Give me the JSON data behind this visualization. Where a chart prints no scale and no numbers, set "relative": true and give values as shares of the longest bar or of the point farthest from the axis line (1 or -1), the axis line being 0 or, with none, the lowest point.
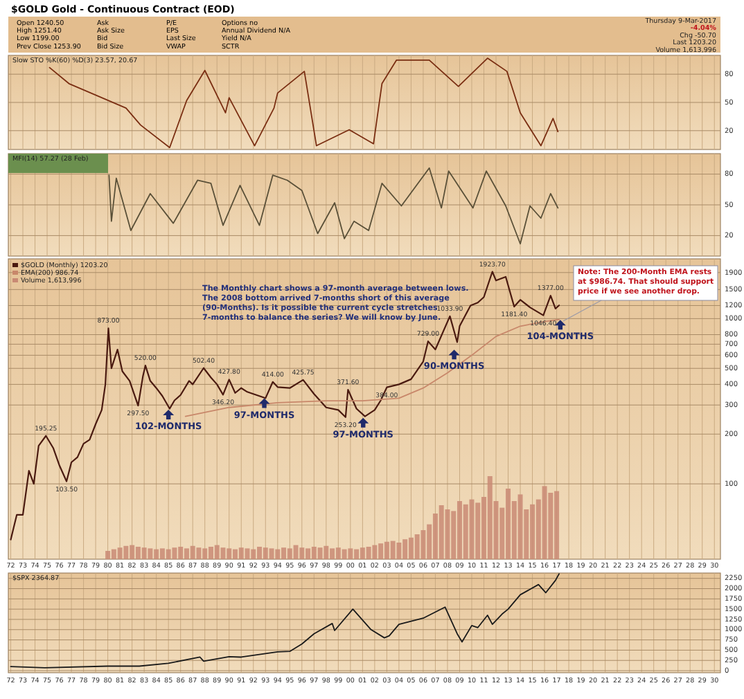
{
  "chart_data": [
    {
      "type": "other",
      "title": "$GOLD Gold - Continuous Contract (EOD)",
      "annotations": [
        "Open 1240.50",
        "High 1251.40",
        "Low 1199.00",
        "Prev Close 1253.90",
        "Ask",
        "Ask Size",
        "Bid",
        "Bid Size",
        "P/E",
        "EPS",
        "Last Size",
        "VWAP",
        "Options no",
        "Annual Dividend N/A",
        "Yield N/A",
        "SCTR",
        "Thursday 9-Mar-2017",
        "-4.04%",
        "Chg -50.70",
        "Last 1203.20",
        "Volume 1,613,996"
      ]
    },
    {
      "type": "line",
      "title": "Slow STO %K(60) %D(3) 23.57, 20.67",
      "xlim": [
        1971.8,
        2030.5
      ],
      "ylim": [
        0,
        100
      ],
      "yticks": [
        20,
        50,
        80
      ],
      "grid": true,
      "tick_labels": "y",
      "xticks": [
        1972,
        1973,
        1974,
        1975,
        1976,
        1977,
        1978,
        1979,
        1980,
        1981,
        1982,
        1983,
        1984,
        1985,
        1986,
        1987,
        1988,
        1989,
        1990,
        1991,
        1992,
        1993,
        1994,
        1995,
        1996,
        1997,
        1998,
        1999,
        2000,
        2001,
        2002,
        2003,
        2004,
        2005,
        2006,
        2007,
        2008,
        2009,
        2010,
        2011,
        2012,
        2013,
        2014,
        2015,
        2016,
        2017,
        2018,
        2019,
        2020,
        2021,
        2022,
        2023,
        2024,
        2025,
        2026,
        2027,
        2028,
        2029,
        2030
      ],
      "series": [
        {
          "color": "#7a2e12",
          "x": [
            1975.2,
            1976.8,
            1981.5,
            1982.7,
            1985.1,
            1986.5,
            1988.0,
            1989.7,
            1990.0,
            1992.1,
            1993.7,
            1994.0,
            1996.2,
            1997.2,
            1999.9,
            2001.9,
            2002.6,
            2003.8,
            2006.5,
            2008.9,
            2011.3,
            2012.9,
            2014.0,
            2015.7,
            2016.7,
            2017.1
          ],
          "values": [
            87,
            70,
            44,
            26,
            2,
            52,
            84,
            39,
            55,
            4,
            44,
            60,
            83,
            4,
            21,
            6,
            70,
            95,
            95,
            67,
            97,
            83,
            39,
            4,
            33,
            19
          ]
        }
      ]
    },
    {
      "type": "line",
      "title": "MFI(14) 57.27 (28 Feb)",
      "xlim": [
        1971.8,
        2030.5
      ],
      "ylim": [
        0,
        100
      ],
      "yticks": [
        20,
        50,
        80
      ],
      "grid": true,
      "tick_labels": "y",
      "xticks": [
        1972,
        1973,
        1974,
        1975,
        1976,
        1977,
        1978,
        1979,
        1980,
        1981,
        1982,
        1983,
        1984,
        1985,
        1986,
        1987,
        1988,
        1989,
        1990,
        1991,
        1992,
        1993,
        1994,
        1995,
        1996,
        1997,
        1998,
        1999,
        2000,
        2001,
        2002,
        2003,
        2004,
        2005,
        2006,
        2007,
        2008,
        2009,
        2010,
        2011,
        2012,
        2013,
        2014,
        2015,
        2016,
        2017,
        2018,
        2019,
        2020,
        2021,
        2022,
        2023,
        2024,
        2025,
        2026,
        2027,
        2028,
        2029,
        2030
      ],
      "series": [
        {
          "color": "#5a5038",
          "x": [
            1980.1,
            1980.3,
            1980.7,
            1981.9,
            1983.5,
            1985.4,
            1987.4,
            1988.5,
            1989.5,
            1990.9,
            1992.5,
            1993.6,
            1994.8,
            1996.0,
            1997.3,
            1998.7,
            1999.5,
            2000.3,
            2001.5,
            2002.6,
            2004.2,
            2006.5,
            2007.5,
            2008.1,
            2010.1,
            2011.2,
            2012.8,
            2014.0,
            2014.8,
            2015.7,
            2016.5,
            2017.1
          ],
          "values": [
            79,
            34,
            76,
            25,
            61,
            32,
            74,
            71,
            30,
            69,
            30,
            79,
            74,
            64,
            22,
            52,
            17,
            34,
            25,
            71,
            49,
            86,
            47,
            83,
            47,
            83,
            49,
            12,
            49,
            37,
            61,
            47
          ]
        }
      ]
    },
    {
      "type": "line",
      "log": "y",
      "xlim": [
        1971.8,
        2030.5
      ],
      "ylim": [
        35,
        2300
      ],
      "yticks": [
        100,
        200,
        300,
        400,
        500,
        600,
        700,
        800,
        1000,
        1200,
        1500,
        1900
      ],
      "grid": true,
      "tick_labels": "y",
      "legend": "top left",
      "xticks": [
        1972,
        1973,
        1974,
        1975,
        1976,
        1977,
        1978,
        1979,
        1980,
        1981,
        1982,
        1983,
        1984,
        1985,
        1986,
        1987,
        1988,
        1989,
        1990,
        1991,
        1992,
        1993,
        1994,
        1995,
        1996,
        1997,
        1998,
        1999,
        2000,
        2001,
        2002,
        2003,
        2004,
        2005,
        2006,
        2007,
        2008,
        2009,
        2010,
        2011,
        2012,
        2013,
        2014,
        2015,
        2016,
        2017,
        2018,
        2019,
        2020,
        2021,
        2022,
        2023,
        2024,
        2025,
        2026,
        2027,
        2028,
        2029,
        2030
      ],
      "series": [
        {
          "name": "$GOLD (Monthly) 1203.20",
          "color": "#4a1a10",
          "x": [
            1972.0,
            1972.5,
            1973.0,
            1973.5,
            1973.9,
            1974.3,
            1974.9,
            1975.5,
            1976.0,
            1976.6,
            1977.0,
            1977.5,
            1978.0,
            1978.5,
            1979.0,
            1979.5,
            1979.8,
            1980.05,
            1980.3,
            1980.8,
            1981.2,
            1981.8,
            1982.5,
            1982.9,
            1983.1,
            1983.5,
            1984.0,
            1984.5,
            1985.1,
            1985.5,
            1986.0,
            1986.7,
            1987.0,
            1987.9,
            1988.5,
            1989.0,
            1989.5,
            1990.0,
            1990.5,
            1991.0,
            1991.5,
            1992.0,
            1993.0,
            1993.6,
            1994.0,
            1995.0,
            1996.1,
            1997.0,
            1998.0,
            1999.0,
            1999.6,
            1999.8,
            2000.5,
            2001.2,
            2002.0,
            2002.5,
            2003.0,
            2004.0,
            2005.0,
            2006.0,
            2006.4,
            2007.0,
            2008.2,
            2008.8,
            2009.0,
            2009.9,
            2010.5,
            2011.0,
            2011.7,
            2012.0,
            2012.8,
            2013.5,
            2014.0,
            2014.8,
            2015.9,
            2016.5,
            2016.9,
            2017.2
          ],
          "values": [
            46,
            65,
            65,
            120,
            100,
            170,
            195.25,
            165,
            130,
            103.5,
            135,
            145,
            175,
            185,
            230,
            280,
            400,
            873,
            500,
            650,
            480,
            420,
            297.5,
            450,
            520,
            420,
            380,
            340,
            285,
            320,
            345,
            420,
            400,
            502.4,
            440,
            400,
            346.2,
            427.8,
            355,
            380,
            360,
            350,
            330,
            414,
            385,
            380,
            425.75,
            350,
            290,
            280,
            253.2,
            371.6,
            285,
            256,
            280,
            320,
            384,
            400,
            430,
            550,
            729,
            650,
            1033.9,
            720,
            900,
            1200,
            1250,
            1350,
            1923.7,
            1700,
            1790,
            1181.4,
            1300,
            1170,
            1046.4,
            1377,
            1150,
            1203
          ]
        },
        {
          "name": "EMA(200) 986.74",
          "color": "#c8876a",
          "x": [
            1986.4,
            1990,
            1994,
            1998,
            2001,
            2004,
            2006,
            2008,
            2010,
            2012,
            2014,
            2016,
            2017.2
          ],
          "values": [
            256,
            290,
            310,
            318,
            318,
            330,
            380,
            470,
            600,
            780,
            900,
            960,
            987
          ]
        },
        {
          "type": "scatter",
          "marker": "triangle",
          "color": "#1f2a6b",
          "x": [
            1985.0,
            1992.9,
            2001.05,
            2008.55,
            2017.3
          ],
          "values": [
            260,
            305,
            232,
            600,
            910
          ]
        }
      ],
      "annotations": [
        "The Monthly chart shows a 97-month average between lows. The 2008 bottom arrived 7-months short of this average (90-Months). Is it possible the current cycle stretches 7-months to balance the series? We will know by June.",
        "Note: The 200-Month EMA rests at $986.74. That should support price if we see another drop.",
        {
          "text": "195.25",
          "x": 1974.9,
          "y": 195.25
        },
        {
          "text": "103.50",
          "x": 1976.6,
          "y": 103.5
        },
        {
          "text": "873.00",
          "x": 1980.05,
          "y": 873
        },
        {
          "text": "297.50",
          "x": 1982.5,
          "y": 297.5
        },
        {
          "text": "520.00",
          "x": 1983.1,
          "y": 520
        },
        {
          "text": "502.40",
          "x": 1987.9,
          "y": 502.4
        },
        {
          "text": "346.20",
          "x": 1989.5,
          "y": 346.2
        },
        {
          "text": "427.80",
          "x": 1990.0,
          "y": 427.8
        },
        {
          "text": "414.00",
          "x": 1993.6,
          "y": 414
        },
        {
          "text": "425.75",
          "x": 1996.1,
          "y": 425.75
        },
        {
          "text": "371.60",
          "x": 1999.8,
          "y": 371.6
        },
        {
          "text": "253.20",
          "x": 1999.6,
          "y": 253.2
        },
        {
          "text": "384.00",
          "x": 2003.0,
          "y": 384
        },
        {
          "text": "729.00",
          "x": 2006.4,
          "y": 729
        },
        {
          "text": "1033.90",
          "x": 2008.2,
          "y": 1033.9
        },
        {
          "text": "1923.70",
          "x": 2011.7,
          "y": 1923.7
        },
        {
          "text": "1181.40",
          "x": 2013.5,
          "y": 1181.4
        },
        {
          "text": "1046.40",
          "x": 2015.9,
          "y": 1046.4
        },
        {
          "text": "1377.00",
          "x": 2016.5,
          "y": 1377
        },
        {
          "text": "102-MONTHS",
          "x": 1985.0,
          "y": 260
        },
        {
          "text": "97-MONTHS",
          "x": 1992.9,
          "y": 305
        },
        {
          "text": "97-MONTHS",
          "x": 2001.05,
          "y": 232
        },
        {
          "text": "90-MONTHS",
          "x": 2008.55,
          "y": 600
        },
        {
          "text": "104-MONTHS",
          "x": 2017.3,
          "y": 910
        }
      ]
    },
    {
      "type": "bar",
      "relative": true,
      "xlim": [
        1971.8,
        2030.5
      ],
      "tick_labels": "x",
      "xticks": [
        {
          "value": 1972,
          "label": "72"
        },
        {
          "value": 1973,
          "label": "73"
        },
        {
          "value": 1974,
          "label": "74"
        },
        {
          "value": 1975,
          "label": "75"
        },
        {
          "value": 1976,
          "label": "76"
        },
        {
          "value": 1977,
          "label": "77"
        },
        {
          "value": 1978,
          "label": "78"
        },
        {
          "value": 1979,
          "label": "79"
        },
        {
          "value": 1980,
          "label": "80"
        },
        {
          "value": 1981,
          "label": "81"
        },
        {
          "value": 1982,
          "label": "82"
        },
        {
          "value": 1983,
          "label": "83"
        },
        {
          "value": 1984,
          "label": "84"
        },
        {
          "value": 1985,
          "label": "85"
        },
        {
          "value": 1986,
          "label": "86"
        },
        {
          "value": 1987,
          "label": "87"
        },
        {
          "value": 1988,
          "label": "88"
        },
        {
          "value": 1989,
          "label": "89"
        },
        {
          "value": 1990,
          "label": "90"
        },
        {
          "value": 1991,
          "label": "91"
        },
        {
          "value": 1992,
          "label": "92"
        },
        {
          "value": 1993,
          "label": "93"
        },
        {
          "value": 1994,
          "label": "94"
        },
        {
          "value": 1995,
          "label": "95"
        },
        {
          "value": 1996,
          "label": "96"
        },
        {
          "value": 1997,
          "label": "97"
        },
        {
          "value": 1998,
          "label": "98"
        },
        {
          "value": 1999,
          "label": "99"
        },
        {
          "value": 2000,
          "label": "00"
        },
        {
          "value": 2001,
          "label": "01"
        },
        {
          "value": 2002,
          "label": "02"
        },
        {
          "value": 2003,
          "label": "03"
        },
        {
          "value": 2004,
          "label": "04"
        },
        {
          "value": 2005,
          "label": "05"
        },
        {
          "value": 2006,
          "label": "06"
        },
        {
          "value": 2007,
          "label": "07"
        },
        {
          "value": 2008,
          "label": "08"
        },
        {
          "value": 2009,
          "label": "09"
        },
        {
          "value": 2010,
          "label": "10"
        },
        {
          "value": 2011,
          "label": "11"
        },
        {
          "value": 2012,
          "label": "12"
        },
        {
          "value": 2013,
          "label": "13"
        },
        {
          "value": 2014,
          "label": "14"
        },
        {
          "value": 2015,
          "label": "15"
        },
        {
          "value": 2016,
          "label": "16"
        },
        {
          "value": 2017,
          "label": "17"
        },
        {
          "value": 2018,
          "label": "18"
        },
        {
          "value": 2019,
          "label": "19"
        },
        {
          "value": 2020,
          "label": "20"
        },
        {
          "value": 2021,
          "label": "21"
        },
        {
          "value": 2022,
          "label": "22"
        },
        {
          "value": 2023,
          "label": "23"
        },
        {
          "value": 2024,
          "label": "24"
        },
        {
          "value": 2025,
          "label": "25"
        },
        {
          "value": 2026,
          "label": "26"
        },
        {
          "value": 2027,
          "label": "27"
        },
        {
          "value": 2028,
          "label": "28"
        },
        {
          "value": 2029,
          "label": "29"
        },
        {
          "value": 2030,
          "label": "30"
        }
      ],
      "x": [
        1980.0,
        1980.5,
        1981.0,
        1981.5,
        1982.0,
        1982.5,
        1983.0,
        1983.5,
        1984.0,
        1984.5,
        1985.0,
        1985.5,
        1986.0,
        1986.5,
        1987.0,
        1987.5,
        1988.0,
        1988.5,
        1989.0,
        1989.5,
        1990.0,
        1990.5,
        1991.0,
        1991.5,
        1992.0,
        1992.5,
        1993.0,
        1993.5,
        1994.0,
        1994.5,
        1995.0,
        1995.5,
        1996.0,
        1996.5,
        1997.0,
        1997.5,
        1998.0,
        1998.5,
        1999.0,
        1999.5,
        2000.0,
        2000.5,
        2001.0,
        2001.5,
        2002.0,
        2002.5,
        2003.0,
        2003.5,
        2004.0,
        2004.5,
        2005.0,
        2005.5,
        2006.0,
        2006.5,
        2007.0,
        2007.5,
        2008.0,
        2008.5,
        2009.0,
        2009.5,
        2010.0,
        2010.5,
        2011.0,
        2011.5,
        2012.0,
        2012.5,
        2013.0,
        2013.5,
        2014.0,
        2014.5,
        2015.0,
        2015.5,
        2016.0,
        2016.5,
        2017.0
      ],
      "series": [
        {
          "name": "Volume 1,613,996",
          "color": "#c98a74",
          "values": [
            0.1,
            0.12,
            0.14,
            0.16,
            0.17,
            0.15,
            0.14,
            0.13,
            0.12,
            0.13,
            0.12,
            0.14,
            0.15,
            0.13,
            0.16,
            0.14,
            0.13,
            0.15,
            0.17,
            0.14,
            0.13,
            0.12,
            0.14,
            0.13,
            0.12,
            0.15,
            0.14,
            0.13,
            0.12,
            0.14,
            0.13,
            0.17,
            0.14,
            0.13,
            0.15,
            0.14,
            0.16,
            0.13,
            0.14,
            0.12,
            0.13,
            0.12,
            0.14,
            0.15,
            0.17,
            0.19,
            0.21,
            0.22,
            0.2,
            0.24,
            0.26,
            0.3,
            0.35,
            0.42,
            0.55,
            0.65,
            0.6,
            0.58,
            0.7,
            0.66,
            0.72,
            0.68,
            0.75,
            1.0,
            0.7,
            0.62,
            0.85,
            0.7,
            0.78,
            0.6,
            0.66,
            0.72,
            0.88,
            0.8,
            0.82
          ]
        }
      ]
    },
    {
      "type": "line",
      "title": "$SPX 2364.87",
      "xlim": [
        1971.8,
        2030.5
      ],
      "ylim": [
        -50,
        2380
      ],
      "yticks": [
        0,
        250,
        500,
        750,
        1000,
        1250,
        1500,
        1750,
        2000,
        2250
      ],
      "grid": true,
      "xticks": [
        {
          "value": 1972,
          "label": "72"
        },
        {
          "value": 1973,
          "label": "73"
        },
        {
          "value": 1974,
          "label": "74"
        },
        {
          "value": 1975,
          "label": "75"
        },
        {
          "value": 1976,
          "label": "76"
        },
        {
          "value": 1977,
          "label": "77"
        },
        {
          "value": 1978,
          "label": "78"
        },
        {
          "value": 1979,
          "label": "79"
        },
        {
          "value": 1980,
          "label": "80"
        },
        {
          "value": 1981,
          "label": "81"
        },
        {
          "value": 1982,
          "label": "82"
        },
        {
          "value": 1983,
          "label": "83"
        },
        {
          "value": 1984,
          "label": "84"
        },
        {
          "value": 1985,
          "label": "85"
        },
        {
          "value": 1986,
          "label": "86"
        },
        {
          "value": 1987,
          "label": "87"
        },
        {
          "value": 1988,
          "label": "88"
        },
        {
          "value": 1989,
          "label": "89"
        },
        {
          "value": 1990,
          "label": "90"
        },
        {
          "value": 1991,
          "label": "91"
        },
        {
          "value": 1992,
          "label": "92"
        },
        {
          "value": 1993,
          "label": "93"
        },
        {
          "value": 1994,
          "label": "94"
        },
        {
          "value": 1995,
          "label": "95"
        },
        {
          "value": 1996,
          "label": "96"
        },
        {
          "value": 1997,
          "label": "97"
        },
        {
          "value": 1998,
          "label": "98"
        },
        {
          "value": 1999,
          "label": "99"
        },
        {
          "value": 2000,
          "label": "00"
        },
        {
          "value": 2001,
          "label": "01"
        },
        {
          "value": 2002,
          "label": "02"
        },
        {
          "value": 2003,
          "label": "03"
        },
        {
          "value": 2004,
          "label": "04"
        },
        {
          "value": 2005,
          "label": "05"
        },
        {
          "value": 2006,
          "label": "06"
        },
        {
          "value": 2007,
          "label": "07"
        },
        {
          "value": 2008,
          "label": "08"
        },
        {
          "value": 2009,
          "label": "09"
        },
        {
          "value": 2010,
          "label": "10"
        },
        {
          "value": 2011,
          "label": "11"
        },
        {
          "value": 2012,
          "label": "12"
        },
        {
          "value": 2013,
          "label": "13"
        },
        {
          "value": 2014,
          "label": "14"
        },
        {
          "value": 2015,
          "label": "15"
        },
        {
          "value": 2016,
          "label": "16"
        },
        {
          "value": 2017,
          "label": "17"
        },
        {
          "value": 2018,
          "label": "18"
        },
        {
          "value": 2019,
          "label": "19"
        },
        {
          "value": 2020,
          "label": "20"
        },
        {
          "value": 2021,
          "label": "21"
        },
        {
          "value": 2022,
          "label": "22"
        },
        {
          "value": 2023,
          "label": "23"
        },
        {
          "value": 2024,
          "label": "24"
        },
        {
          "value": 2025,
          "label": "25"
        },
        {
          "value": 2026,
          "label": "26"
        },
        {
          "value": 2027,
          "label": "27"
        },
        {
          "value": 2028,
          "label": "28"
        },
        {
          "value": 2029,
          "label": "29"
        },
        {
          "value": 2030,
          "label": "30"
        }
      ],
      "series": [
        {
          "color": "#1a1a1a",
          "x": [
            1972,
            1974.8,
            1980,
            1982.6,
            1985,
            1987.6,
            1987.9,
            1990,
            1991,
            1994,
            1995,
            1996,
            1997,
            1998.5,
            1998.7,
            2000.2,
            2001.7,
            2002.8,
            2003.2,
            2004,
            2006,
            2007.8,
            2008.8,
            2009.2,
            2010,
            2010.5,
            2011.3,
            2011.7,
            2012.5,
            2013,
            2014,
            2015.5,
            2016.1,
            2016.9,
            2017.2
          ],
          "values": [
            100,
            70,
            110,
            110,
            180,
            330,
            230,
            340,
            330,
            460,
            470,
            650,
            900,
            1150,
            980,
            1500,
            1000,
            800,
            850,
            1130,
            1280,
            1550,
            900,
            700,
            1100,
            1050,
            1350,
            1130,
            1380,
            1500,
            1850,
            2100,
            1900,
            2200,
            2360
          ]
        }
      ]
    }
  ]
}
